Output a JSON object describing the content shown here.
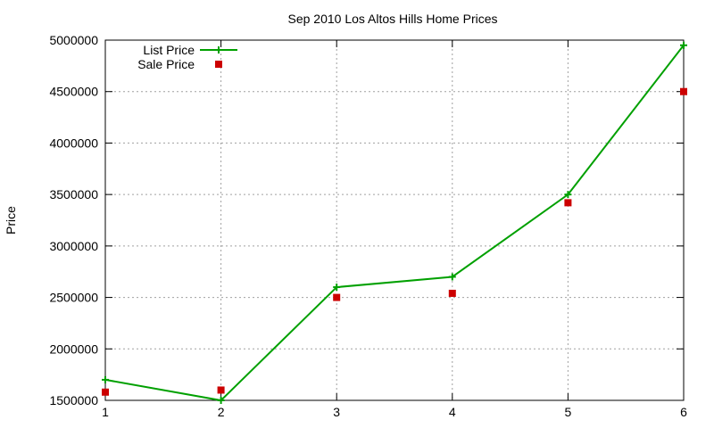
{
  "chart_data": {
    "type": "line",
    "title": "Sep 2010 Los Altos Hills Home Prices",
    "xlabel": "",
    "ylabel": "Price",
    "x": [
      1,
      2,
      3,
      4,
      5,
      6
    ],
    "xlim": [
      1,
      6
    ],
    "ylim": [
      1500000,
      5000000
    ],
    "xticks": [
      "1",
      "2",
      "3",
      "4",
      "5",
      "6"
    ],
    "yticks": [
      "1500000",
      "2000000",
      "2500000",
      "3000000",
      "3500000",
      "4000000",
      "4500000",
      "5000000"
    ],
    "grid": true,
    "legend_position": "top-left",
    "series": [
      {
        "name": "List Price",
        "style": "line-plus",
        "color": "#00a000",
        "values": [
          1700000,
          1500000,
          2600000,
          2700000,
          3500000,
          4950000
        ]
      },
      {
        "name": "Sale Price",
        "style": "square",
        "color": "#cc0000",
        "values": [
          1580000,
          1600000,
          2500000,
          2540000,
          3420000,
          4500000
        ]
      }
    ]
  }
}
